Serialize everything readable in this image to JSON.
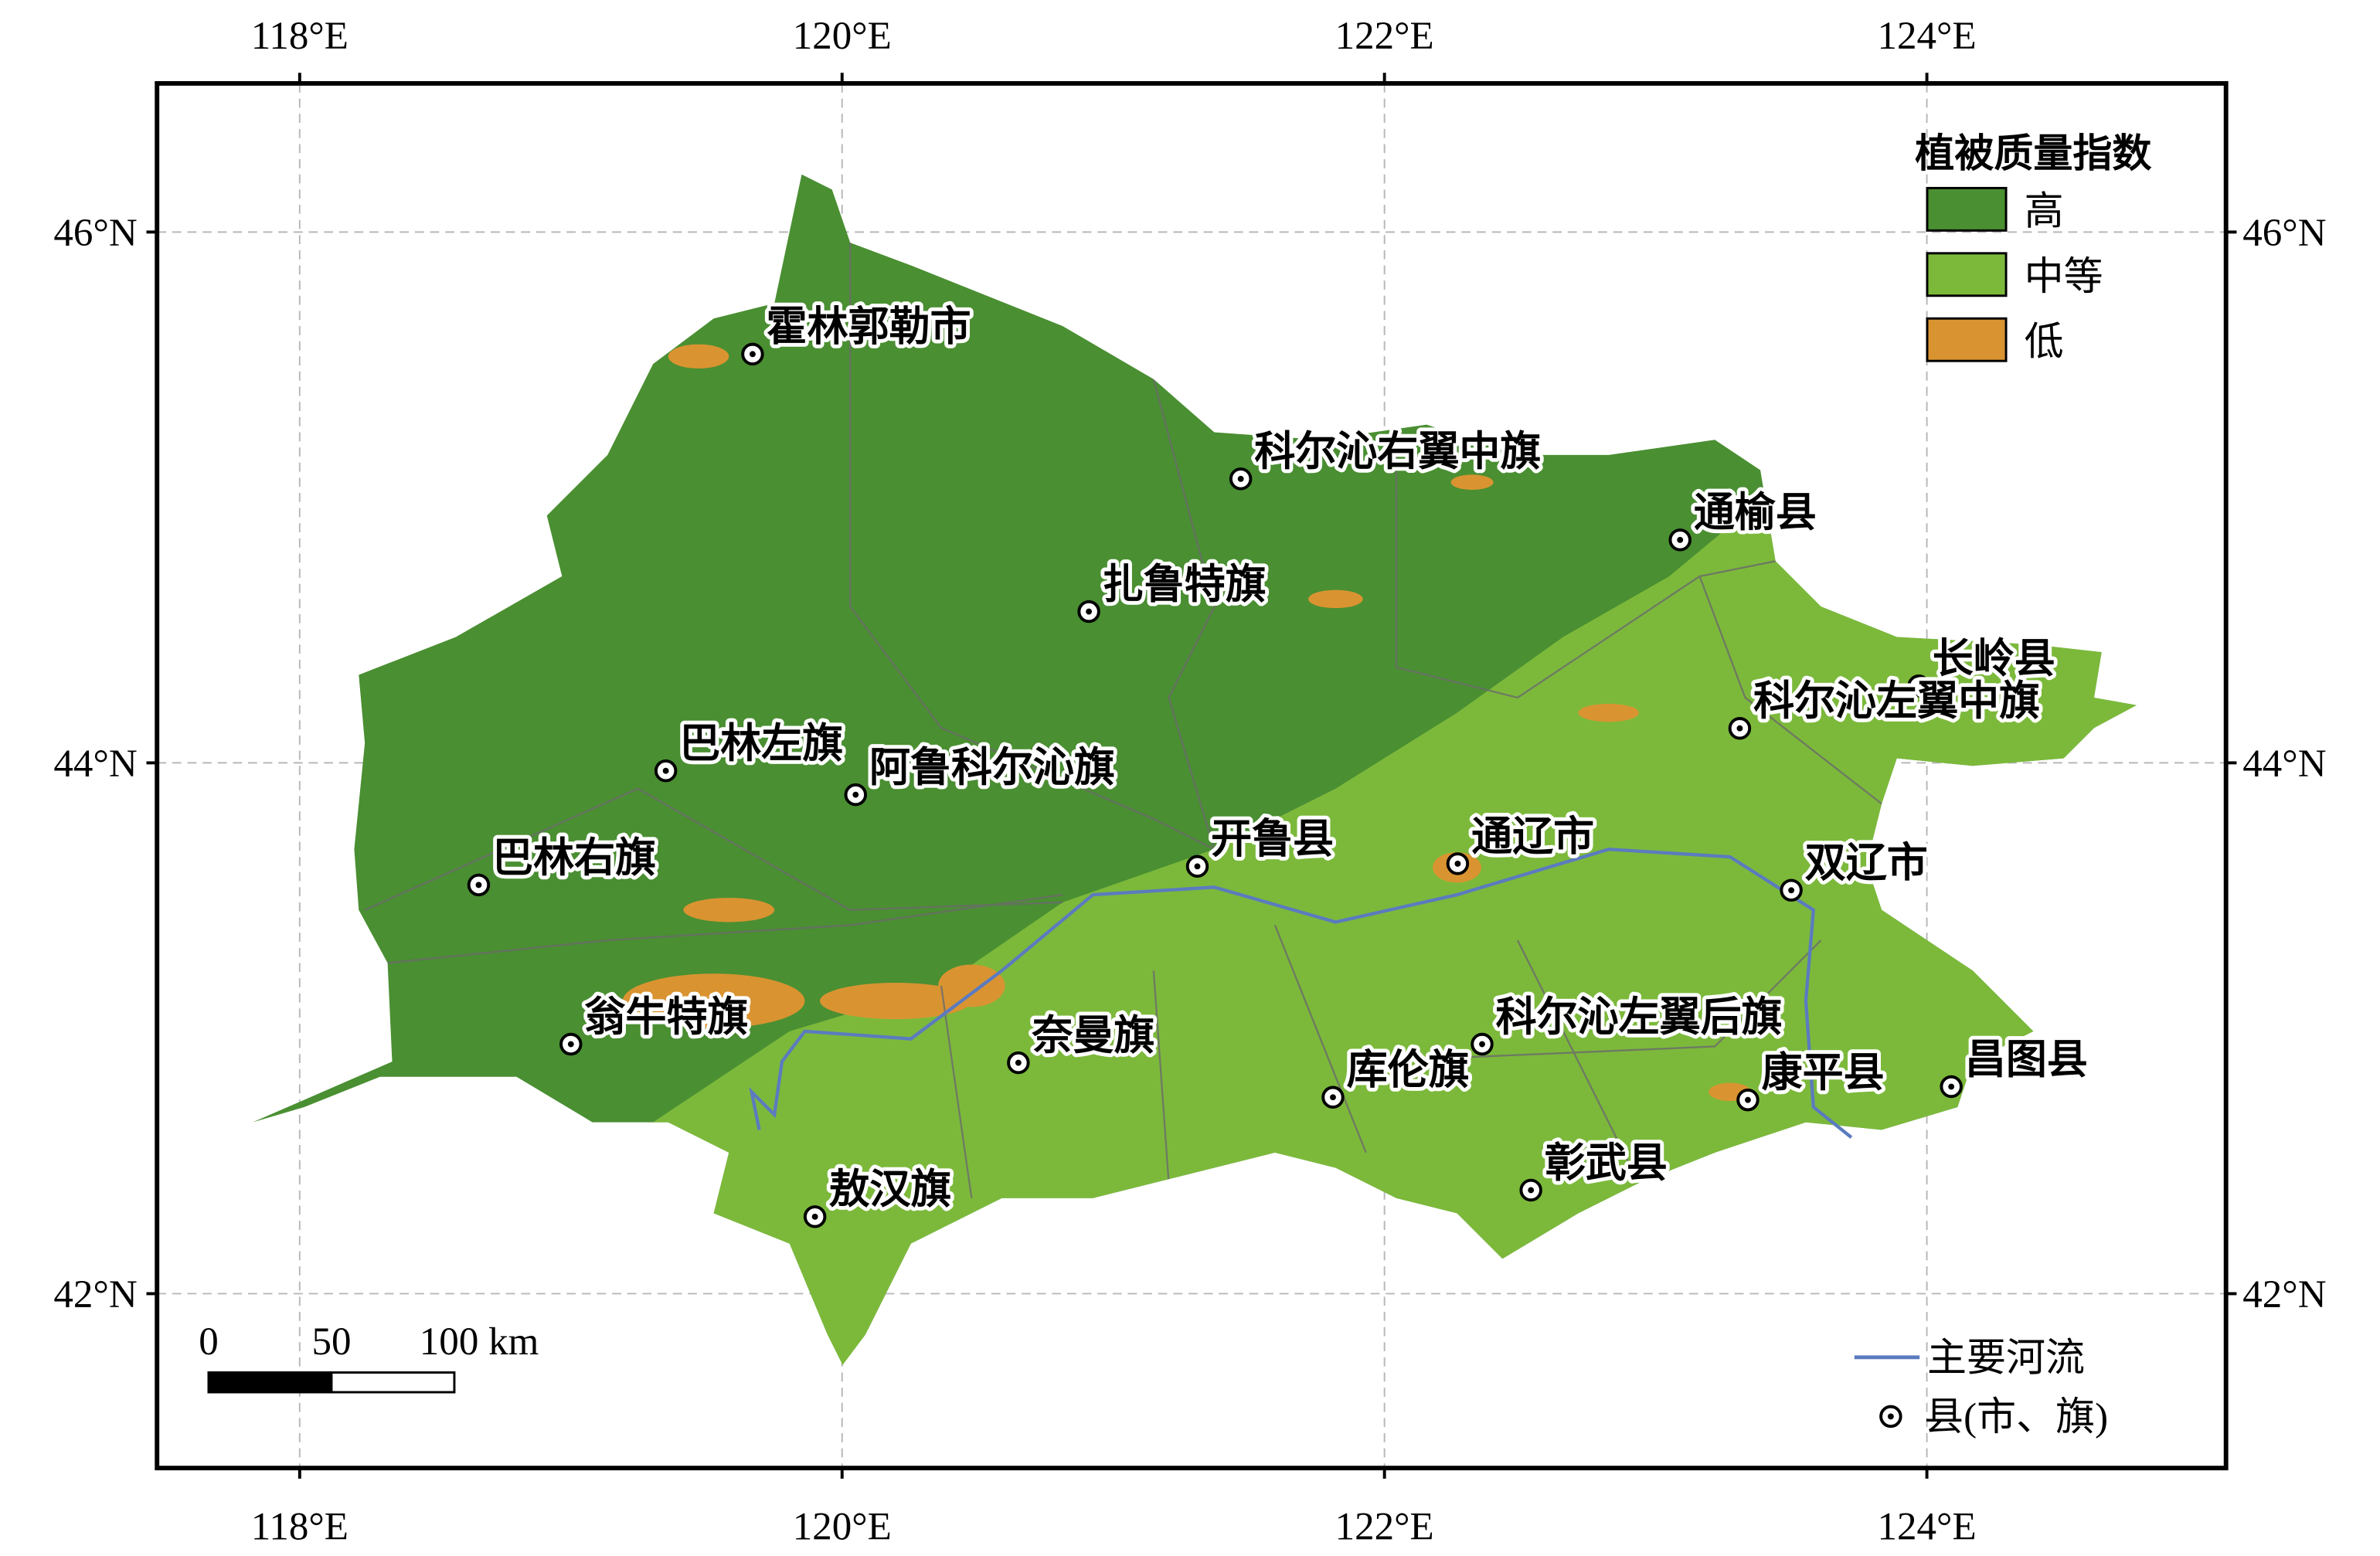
{
  "map": {
    "xlim": [
      117.474,
      125.103
    ],
    "ylim": [
      41.343,
      46.56
    ],
    "xticks": [
      {
        "value": 118,
        "label": "118°E"
      },
      {
        "value": 120,
        "label": "120°E"
      },
      {
        "value": 122,
        "label": "122°E"
      },
      {
        "value": 124,
        "label": "124°E"
      }
    ],
    "yticks": [
      {
        "value": 42,
        "label": "42°N"
      },
      {
        "value": 44,
        "label": "44°N"
      },
      {
        "value": 46,
        "label": "46°N"
      }
    ],
    "legend": {
      "title": "植被质量指数",
      "items": [
        {
          "label": "高",
          "color": "#4a8f32"
        },
        {
          "label": "中等",
          "color": "#7cb93b"
        },
        {
          "label": "低",
          "color": "#d99431"
        }
      ]
    },
    "river_label": "主要河流",
    "river_color": "#5b7bbf",
    "county_label": "县(市、旗)",
    "scale_bar": {
      "labels": [
        "0",
        "50",
        "100 km"
      ]
    },
    "counties": [
      {
        "name": "霍林郭勒市",
        "lon": 119.67,
        "lat": 45.54
      },
      {
        "name": "科尔沁右翼中旗",
        "lon": 121.47,
        "lat": 45.07
      },
      {
        "name": "通榆县",
        "lon": 123.09,
        "lat": 44.84
      },
      {
        "name": "扎鲁特旗",
        "lon": 120.91,
        "lat": 44.57
      },
      {
        "name": "长岭县",
        "lon": 123.97,
        "lat": 44.29
      },
      {
        "name": "科尔沁左翼中旗",
        "lon": 123.31,
        "lat": 44.13
      },
      {
        "name": "巴林左旗",
        "lon": 119.35,
        "lat": 43.97
      },
      {
        "name": "阿鲁科尔沁旗",
        "lon": 120.05,
        "lat": 43.88
      },
      {
        "name": "巴林右旗",
        "lon": 118.66,
        "lat": 43.54
      },
      {
        "name": "开鲁县",
        "lon": 121.31,
        "lat": 43.61
      },
      {
        "name": "通辽市",
        "lon": 122.27,
        "lat": 43.62
      },
      {
        "name": "双辽市",
        "lon": 123.5,
        "lat": 43.52
      },
      {
        "name": "翁牛特旗",
        "lon": 119.0,
        "lat": 42.94
      },
      {
        "name": "奈曼旗",
        "lon": 120.65,
        "lat": 42.87
      },
      {
        "name": "库伦旗",
        "lon": 121.81,
        "lat": 42.74
      },
      {
        "name": "科尔沁左翼后旗",
        "lon": 122.36,
        "lat": 42.94
      },
      {
        "name": "康平县",
        "lon": 123.34,
        "lat": 42.73
      },
      {
        "name": "昌图县",
        "lon": 124.09,
        "lat": 42.78
      },
      {
        "name": "彰武县",
        "lon": 122.54,
        "lat": 42.39
      },
      {
        "name": "敖汉旗",
        "lon": 119.9,
        "lat": 42.29
      }
    ]
  }
}
